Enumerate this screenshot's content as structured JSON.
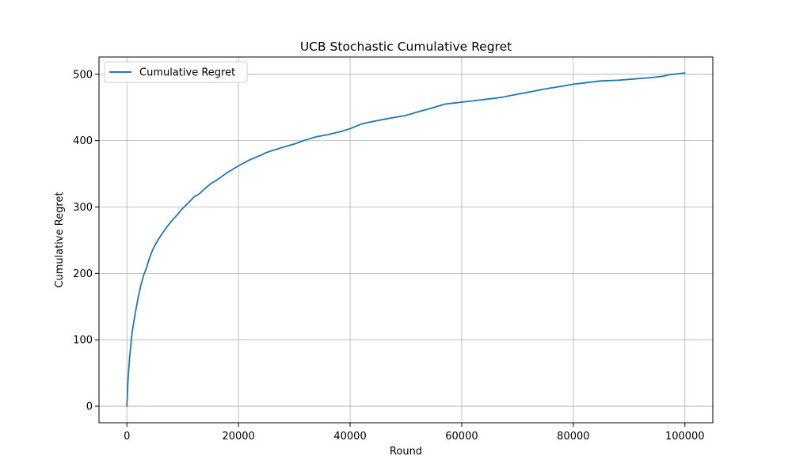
{
  "chart_data": {
    "type": "line",
    "title": "UCB Stochastic Cumulative Regret",
    "xlabel": "Round",
    "ylabel": "Cumulative Regret",
    "xlim": [
      -5000,
      105000
    ],
    "ylim": [
      -25,
      526
    ],
    "x_ticks": [
      0,
      20000,
      40000,
      60000,
      80000,
      100000
    ],
    "x_tick_labels": [
      "0",
      "20000",
      "40000",
      "60000",
      "80000",
      "100000"
    ],
    "y_ticks": [
      0,
      100,
      200,
      300,
      400,
      500
    ],
    "y_tick_labels": [
      "0",
      "100",
      "200",
      "300",
      "400",
      "500"
    ],
    "grid": true,
    "legend_position": "top-left",
    "series": [
      {
        "name": "Cumulative Regret",
        "color": "#1f77b4",
        "x": [
          0,
          200,
          500,
          800,
          1000,
          1500,
          2000,
          2500,
          3000,
          3500,
          4000,
          4500,
          5000,
          6000,
          7000,
          8000,
          9000,
          10000,
          11000,
          12000,
          13000,
          14000,
          15000,
          16000,
          17000,
          18000,
          20000,
          22000,
          24000,
          25000,
          26000,
          28000,
          30000,
          32000,
          34000,
          36000,
          38000,
          40000,
          42000,
          43000,
          46000,
          48000,
          50000,
          52000,
          55000,
          57000,
          59000,
          62000,
          65000,
          67000,
          70000,
          72000,
          75000,
          78000,
          80000,
          82000,
          85000,
          88000,
          91000,
          94000,
          96000,
          97000,
          98000,
          99000,
          100000
        ],
        "y": [
          0,
          40,
          75,
          100,
          115,
          140,
          163,
          182,
          197,
          208,
          222,
          233,
          242,
          256,
          268,
          279,
          288,
          298,
          306,
          315,
          320,
          328,
          335,
          340,
          346,
          352,
          362,
          371,
          378,
          382,
          385,
          390,
          395,
          401,
          406,
          409,
          413,
          418,
          425,
          427,
          432,
          435,
          438,
          443,
          450,
          455,
          457,
          460,
          463,
          465,
          470,
          473,
          478,
          482,
          485,
          487,
          490,
          491,
          493,
          495,
          497,
          499,
          500,
          501,
          502
        ]
      }
    ]
  }
}
